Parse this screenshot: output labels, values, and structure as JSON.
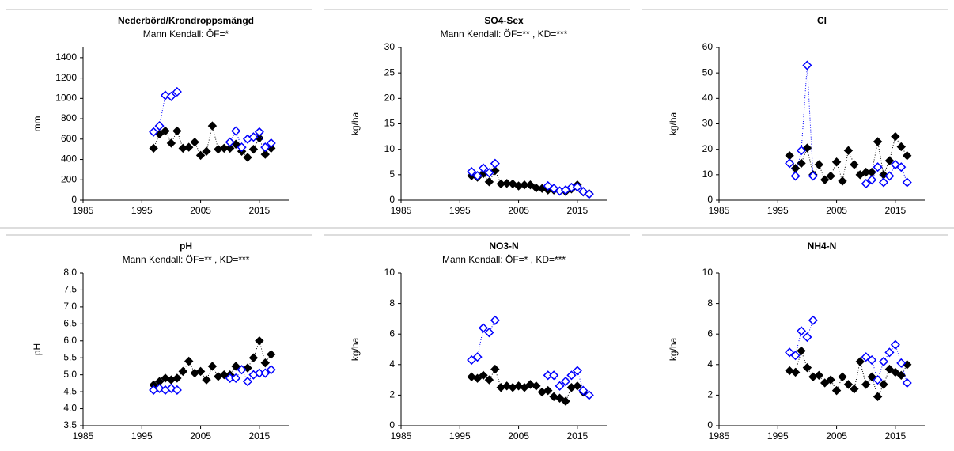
{
  "chart_data": [
    {
      "type": "scatter",
      "title": "Nederbörd/Krondroppsmängd",
      "subtitle": "Mann Kendall: ÖF=*",
      "ylabel": "mm",
      "x": [
        1997,
        1998,
        1999,
        2000,
        2001,
        2002,
        2003,
        2004,
        2005,
        2006,
        2007,
        2008,
        2009,
        2010,
        2011,
        2012,
        2013,
        2014,
        2015,
        2016,
        2017
      ],
      "xlim": [
        1985,
        2020
      ],
      "xticks": [
        1985,
        1995,
        2005,
        2015
      ],
      "ylim": [
        0,
        1500
      ],
      "yticks": [
        0,
        200,
        400,
        600,
        800,
        1000,
        1200,
        1400
      ],
      "series": [
        {
          "color": "#000000",
          "marker": "filled",
          "line_style": "dotted",
          "values": [
            510,
            650,
            680,
            560,
            680,
            510,
            520,
            570,
            440,
            480,
            730,
            500,
            510,
            510,
            550,
            480,
            420,
            500,
            610,
            450,
            510
          ]
        },
        {
          "color": "#0000ff",
          "marker": "open",
          "line_style": "dotted",
          "values": [
            670,
            730,
            1030,
            1020,
            1065,
            null,
            null,
            null,
            null,
            null,
            null,
            null,
            null,
            570,
            680,
            520,
            600,
            620,
            670,
            520,
            560
          ]
        }
      ]
    },
    {
      "type": "scatter",
      "title": "SO4-Sex",
      "subtitle": "Mann Kendall: ÖF=** , KD=***",
      "ylabel": "kg/ha",
      "x": [
        1997,
        1998,
        1999,
        2000,
        2001,
        2002,
        2003,
        2004,
        2005,
        2006,
        2007,
        2008,
        2009,
        2010,
        2011,
        2012,
        2013,
        2014,
        2015,
        2016,
        2017
      ],
      "xlim": [
        1985,
        2020
      ],
      "xticks": [
        1985,
        1995,
        2005,
        2015
      ],
      "ylim": [
        0,
        30
      ],
      "yticks": [
        0,
        5,
        10,
        15,
        20,
        25,
        30
      ],
      "series": [
        {
          "color": "#000000",
          "marker": "filled",
          "line_style": "dotted",
          "values": [
            4.8,
            4.5,
            5.2,
            3.6,
            5.8,
            3.2,
            3.3,
            3.2,
            2.8,
            3.0,
            3.0,
            2.4,
            2.3,
            2.0,
            2.0,
            1.8,
            1.7,
            2.2,
            3.0,
            1.6,
            1.3
          ]
        },
        {
          "color": "#0000ff",
          "marker": "open",
          "line_style": "dotted",
          "values": [
            5.6,
            4.8,
            6.3,
            5.4,
            7.2,
            null,
            null,
            null,
            null,
            null,
            null,
            null,
            null,
            2.8,
            2.3,
            1.8,
            2.0,
            2.5,
            2.6,
            1.7,
            1.2
          ]
        }
      ]
    },
    {
      "type": "scatter",
      "title": "Cl",
      "ylabel": "kg/ha",
      "x": [
        1997,
        1998,
        1999,
        2000,
        2001,
        2002,
        2003,
        2004,
        2005,
        2006,
        2007,
        2008,
        2009,
        2010,
        2011,
        2012,
        2013,
        2014,
        2015,
        2016,
        2017
      ],
      "xlim": [
        1985,
        2020
      ],
      "xticks": [
        1985,
        1995,
        2005,
        2015
      ],
      "ylim": [
        0,
        60
      ],
      "yticks": [
        0,
        10,
        20,
        30,
        40,
        50,
        60
      ],
      "series": [
        {
          "color": "#000000",
          "marker": "filled",
          "line_style": "dotted",
          "values": [
            17.5,
            12.5,
            14.5,
            20.5,
            10,
            14,
            8,
            9.5,
            15,
            7.5,
            19.5,
            14,
            10,
            11,
            11,
            23,
            10,
            15.5,
            25,
            21,
            17.5
          ]
        },
        {
          "color": "#0000ff",
          "marker": "open",
          "line_style": "dotted",
          "values": [
            14.5,
            9.5,
            19.5,
            53,
            9.5,
            null,
            null,
            null,
            null,
            null,
            null,
            null,
            null,
            6.5,
            8,
            13,
            7,
            9.5,
            14,
            13,
            7
          ]
        }
      ]
    },
    {
      "type": "scatter",
      "title": "pH",
      "subtitle": "Mann Kendall: ÖF=** , KD=***",
      "ylabel": "pH",
      "x": [
        1997,
        1998,
        1999,
        2000,
        2001,
        2002,
        2003,
        2004,
        2005,
        2006,
        2007,
        2008,
        2009,
        2010,
        2011,
        2012,
        2013,
        2014,
        2015,
        2016,
        2017
      ],
      "xlim": [
        1985,
        2020
      ],
      "xticks": [
        1985,
        1995,
        2005,
        2015
      ],
      "ylim": [
        3.5,
        8.0
      ],
      "yticks": [
        3.5,
        {
          "value": 4,
          "label": "4.0"
        },
        4.5,
        {
          "value": 5,
          "label": "5.0"
        },
        5.5,
        {
          "value": 6,
          "label": "6.0"
        },
        6.5,
        {
          "value": 7,
          "label": "7.0"
        },
        7.5,
        {
          "value": 8,
          "label": "8.0"
        }
      ],
      "series": [
        {
          "color": "#000000",
          "marker": "filled",
          "line_style": "dotted",
          "values": [
            4.7,
            4.8,
            4.9,
            4.85,
            4.9,
            5.1,
            5.4,
            5.05,
            5.1,
            4.85,
            5.25,
            4.95,
            5.0,
            5.0,
            5.25,
            5.15,
            5.2,
            5.5,
            6.0,
            5.35,
            5.6
          ]
        },
        {
          "color": "#0000ff",
          "marker": "open",
          "line_style": "dotted",
          "values": [
            4.55,
            4.6,
            4.55,
            4.6,
            4.55,
            null,
            null,
            null,
            null,
            null,
            null,
            null,
            null,
            4.9,
            4.9,
            5.15,
            4.8,
            5.0,
            5.05,
            5.05,
            5.15
          ]
        }
      ]
    },
    {
      "type": "scatter",
      "title": "NO3-N",
      "subtitle": "Mann Kendall: ÖF=* , KD=***",
      "ylabel": "kg/ha",
      "x": [
        1997,
        1998,
        1999,
        2000,
        2001,
        2002,
        2003,
        2004,
        2005,
        2006,
        2007,
        2008,
        2009,
        2010,
        2011,
        2012,
        2013,
        2014,
        2015,
        2016,
        2017
      ],
      "xlim": [
        1985,
        2020
      ],
      "xticks": [
        1985,
        1995,
        2005,
        2015
      ],
      "ylim": [
        0,
        10
      ],
      "yticks": [
        0,
        2,
        4,
        6,
        8,
        10
      ],
      "series": [
        {
          "color": "#000000",
          "marker": "filled",
          "line_style": "dotted",
          "values": [
            3.2,
            3.1,
            3.3,
            3.0,
            3.7,
            2.5,
            2.6,
            2.5,
            2.6,
            2.5,
            2.7,
            2.6,
            2.2,
            2.3,
            1.9,
            1.8,
            1.6,
            2.5,
            2.6,
            2.2,
            2.0
          ]
        },
        {
          "color": "#0000ff",
          "marker": "open",
          "line_style": "dotted",
          "values": [
            4.3,
            4.5,
            6.4,
            6.1,
            6.9,
            null,
            null,
            null,
            null,
            null,
            null,
            null,
            null,
            3.3,
            3.3,
            2.6,
            2.9,
            3.3,
            3.6,
            2.3,
            2.0
          ]
        }
      ]
    },
    {
      "type": "scatter",
      "title": "NH4-N",
      "ylabel": "kg/ha",
      "x": [
        1997,
        1998,
        1999,
        2000,
        2001,
        2002,
        2003,
        2004,
        2005,
        2006,
        2007,
        2008,
        2009,
        2010,
        2011,
        2012,
        2013,
        2014,
        2015,
        2016,
        2017
      ],
      "xlim": [
        1985,
        2020
      ],
      "xticks": [
        1985,
        1995,
        2005,
        2015
      ],
      "ylim": [
        0,
        10
      ],
      "yticks": [
        0,
        2,
        4,
        6,
        8,
        10
      ],
      "series": [
        {
          "color": "#000000",
          "marker": "filled",
          "line_style": "dotted",
          "values": [
            3.6,
            3.5,
            4.9,
            3.8,
            3.2,
            3.3,
            2.8,
            3.0,
            2.3,
            3.2,
            2.7,
            2.4,
            4.2,
            2.7,
            3.2,
            1.9,
            2.7,
            3.7,
            3.5,
            3.3,
            4.0
          ]
        },
        {
          "color": "#0000ff",
          "marker": "open",
          "line_style": "dotted",
          "values": [
            4.8,
            4.6,
            6.2,
            5.8,
            6.9,
            null,
            null,
            null,
            null,
            null,
            null,
            null,
            null,
            4.5,
            4.3,
            3.0,
            4.2,
            4.8,
            5.3,
            4.1,
            2.8
          ]
        }
      ]
    }
  ]
}
